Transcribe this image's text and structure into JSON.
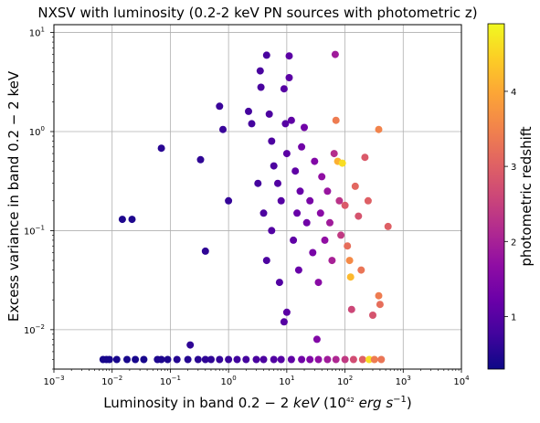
{
  "chart_data": {
    "type": "scatter",
    "title": "NXSV with luminosity (0.2-2 keV PN sources with photometric z)",
    "xlabel": "Luminosity in band 0.2 − 2 keV   (10^42 erg s^−1)",
    "xlabel_parts": {
      "main": "Luminosity in band ",
      "band_a": "0.2",
      "minus": " − 2",
      "unit": "keV",
      "paren_open": "(10",
      "paren_exp": "42",
      "erg": " erg s",
      "s_exp": "−1",
      "paren_close": ")"
    },
    "ylabel": "Excess variance in band 0.2 − 2 keV",
    "colorbar_label": "photometric redshift",
    "x_scale": "log",
    "y_scale": "log",
    "xlim": [
      0.001,
      10000
    ],
    "ylim": [
      0.004,
      12
    ],
    "x_ticks": [
      {
        "base": "10",
        "exp": "−3",
        "value": 0.001
      },
      {
        "base": "10",
        "exp": "−2",
        "value": 0.01
      },
      {
        "base": "10",
        "exp": "−1",
        "value": 0.1
      },
      {
        "base": "10",
        "exp": "0",
        "value": 1
      },
      {
        "base": "10",
        "exp": "1",
        "value": 10
      },
      {
        "base": "10",
        "exp": "2",
        "value": 100
      },
      {
        "base": "10",
        "exp": "3",
        "value": 1000
      },
      {
        "base": "10",
        "exp": "4",
        "value": 10000
      }
    ],
    "y_ticks": [
      {
        "base": "10",
        "exp": "−2",
        "value": 0.01
      },
      {
        "base": "10",
        "exp": "−1",
        "value": 0.1
      },
      {
        "base": "10",
        "exp": "0",
        "value": 1
      },
      {
        "base": "10",
        "exp": "1",
        "value": 10
      }
    ],
    "colorbar": {
      "colormap": "plasma",
      "range": [
        0.3,
        4.9
      ],
      "ticks": [
        "1",
        "2",
        "3",
        "4"
      ],
      "tick_values": [
        1,
        2,
        3,
        4
      ]
    },
    "grid": true,
    "floor_value": 0.005,
    "points": [
      {
        "x": 0.007,
        "y": 0.005,
        "z": 0.4
      },
      {
        "x": 0.008,
        "y": 0.005,
        "z": 0.4
      },
      {
        "x": 0.009,
        "y": 0.005,
        "z": 0.4
      },
      {
        "x": 0.012,
        "y": 0.005,
        "z": 0.4
      },
      {
        "x": 0.018,
        "y": 0.005,
        "z": 0.4
      },
      {
        "x": 0.025,
        "y": 0.005,
        "z": 0.4
      },
      {
        "x": 0.035,
        "y": 0.005,
        "z": 0.4
      },
      {
        "x": 0.06,
        "y": 0.005,
        "z": 0.45
      },
      {
        "x": 0.07,
        "y": 0.005,
        "z": 0.45
      },
      {
        "x": 0.09,
        "y": 0.005,
        "z": 0.45
      },
      {
        "x": 0.13,
        "y": 0.005,
        "z": 0.5
      },
      {
        "x": 0.2,
        "y": 0.005,
        "z": 0.5
      },
      {
        "x": 0.3,
        "y": 0.005,
        "z": 0.55
      },
      {
        "x": 0.4,
        "y": 0.005,
        "z": 0.6
      },
      {
        "x": 0.5,
        "y": 0.005,
        "z": 0.6
      },
      {
        "x": 0.7,
        "y": 0.005,
        "z": 0.65
      },
      {
        "x": 1.0,
        "y": 0.005,
        "z": 0.7
      },
      {
        "x": 1.4,
        "y": 0.005,
        "z": 0.75
      },
      {
        "x": 2.0,
        "y": 0.005,
        "z": 0.8
      },
      {
        "x": 3.0,
        "y": 0.005,
        "z": 0.85
      },
      {
        "x": 4.0,
        "y": 0.005,
        "z": 0.9
      },
      {
        "x": 6.0,
        "y": 0.005,
        "z": 0.95
      },
      {
        "x": 8.0,
        "y": 0.005,
        "z": 1.0
      },
      {
        "x": 12,
        "y": 0.005,
        "z": 1.1
      },
      {
        "x": 18,
        "y": 0.005,
        "z": 1.3
      },
      {
        "x": 25,
        "y": 0.005,
        "z": 1.5
      },
      {
        "x": 35,
        "y": 0.005,
        "z": 1.7
      },
      {
        "x": 50,
        "y": 0.005,
        "z": 1.9
      },
      {
        "x": 70,
        "y": 0.005,
        "z": 2.1
      },
      {
        "x": 100,
        "y": 0.005,
        "z": 2.4
      },
      {
        "x": 140,
        "y": 0.005,
        "z": 2.7
      },
      {
        "x": 200,
        "y": 0.005,
        "z": 3.0
      },
      {
        "x": 260,
        "y": 0.005,
        "z": 4.6
      },
      {
        "x": 320,
        "y": 0.005,
        "z": 3.4
      },
      {
        "x": 420,
        "y": 0.005,
        "z": 3.3
      },
      {
        "x": 0.015,
        "y": 0.13,
        "z": 0.45
      },
      {
        "x": 0.022,
        "y": 0.13,
        "z": 0.45
      },
      {
        "x": 0.07,
        "y": 0.68,
        "z": 0.55
      },
      {
        "x": 0.22,
        "y": 0.007,
        "z": 0.6
      },
      {
        "x": 0.33,
        "y": 0.52,
        "z": 0.6
      },
      {
        "x": 0.4,
        "y": 0.062,
        "z": 0.6
      },
      {
        "x": 0.7,
        "y": 1.8,
        "z": 0.7
      },
      {
        "x": 0.8,
        "y": 1.05,
        "z": 0.7
      },
      {
        "x": 1.0,
        "y": 0.2,
        "z": 0.65
      },
      {
        "x": 2.2,
        "y": 1.6,
        "z": 0.8
      },
      {
        "x": 2.5,
        "y": 1.2,
        "z": 0.8
      },
      {
        "x": 3.2,
        "y": 0.3,
        "z": 0.8
      },
      {
        "x": 3.5,
        "y": 4.1,
        "z": 0.85
      },
      {
        "x": 3.6,
        "y": 2.8,
        "z": 0.85
      },
      {
        "x": 4.5,
        "y": 5.9,
        "z": 0.85
      },
      {
        "x": 5.0,
        "y": 1.5,
        "z": 0.9
      },
      {
        "x": 5.5,
        "y": 0.8,
        "z": 0.9
      },
      {
        "x": 6.0,
        "y": 0.45,
        "z": 0.9
      },
      {
        "x": 4.0,
        "y": 0.15,
        "z": 0.9
      },
      {
        "x": 4.5,
        "y": 0.05,
        "z": 0.9
      },
      {
        "x": 5.5,
        "y": 0.1,
        "z": 0.95
      },
      {
        "x": 7.0,
        "y": 0.3,
        "z": 0.95
      },
      {
        "x": 7.5,
        "y": 0.03,
        "z": 0.95
      },
      {
        "x": 8.0,
        "y": 0.2,
        "z": 1.0
      },
      {
        "x": 9.0,
        "y": 2.7,
        "z": 1.0
      },
      {
        "x": 9.5,
        "y": 1.2,
        "z": 1.0
      },
      {
        "x": 10,
        "y": 0.6,
        "z": 1.05
      },
      {
        "x": 11,
        "y": 5.8,
        "z": 1.05
      },
      {
        "x": 11,
        "y": 3.5,
        "z": 1.05
      },
      {
        "x": 9.0,
        "y": 0.012,
        "z": 1.0
      },
      {
        "x": 10,
        "y": 0.015,
        "z": 1.05
      },
      {
        "x": 12,
        "y": 1.3,
        "z": 1.1
      },
      {
        "x": 13,
        "y": 0.08,
        "z": 1.1
      },
      {
        "x": 14,
        "y": 0.4,
        "z": 1.1
      },
      {
        "x": 15,
        "y": 0.15,
        "z": 1.2
      },
      {
        "x": 16,
        "y": 0.04,
        "z": 1.2
      },
      {
        "x": 17,
        "y": 0.25,
        "z": 1.2
      },
      {
        "x": 18,
        "y": 0.7,
        "z": 1.3
      },
      {
        "x": 20,
        "y": 1.1,
        "z": 1.3
      },
      {
        "x": 22,
        "y": 0.12,
        "z": 1.3
      },
      {
        "x": 25,
        "y": 0.2,
        "z": 1.4
      },
      {
        "x": 28,
        "y": 0.06,
        "z": 1.4
      },
      {
        "x": 30,
        "y": 0.5,
        "z": 1.5
      },
      {
        "x": 33,
        "y": 0.008,
        "z": 1.5
      },
      {
        "x": 35,
        "y": 0.03,
        "z": 1.6
      },
      {
        "x": 38,
        "y": 0.15,
        "z": 1.6
      },
      {
        "x": 40,
        "y": 0.35,
        "z": 1.7
      },
      {
        "x": 45,
        "y": 0.08,
        "z": 1.7
      },
      {
        "x": 50,
        "y": 0.25,
        "z": 1.8
      },
      {
        "x": 55,
        "y": 0.12,
        "z": 1.9
      },
      {
        "x": 60,
        "y": 0.05,
        "z": 2.0
      },
      {
        "x": 65,
        "y": 0.6,
        "z": 2.2
      },
      {
        "x": 68,
        "y": 6.0,
        "z": 1.9
      },
      {
        "x": 70,
        "y": 1.3,
        "z": 3.4
      },
      {
        "x": 75,
        "y": 0.5,
        "z": 4.1
      },
      {
        "x": 80,
        "y": 0.2,
        "z": 2.3
      },
      {
        "x": 85,
        "y": 0.09,
        "z": 2.4
      },
      {
        "x": 90,
        "y": 0.48,
        "z": 4.6
      },
      {
        "x": 100,
        "y": 0.18,
        "z": 2.9
      },
      {
        "x": 110,
        "y": 0.07,
        "z": 3.2
      },
      {
        "x": 120,
        "y": 0.05,
        "z": 3.6
      },
      {
        "x": 125,
        "y": 0.034,
        "z": 4.2
      },
      {
        "x": 130,
        "y": 0.016,
        "z": 2.6
      },
      {
        "x": 150,
        "y": 0.28,
        "z": 3.1
      },
      {
        "x": 170,
        "y": 0.14,
        "z": 2.8
      },
      {
        "x": 190,
        "y": 0.04,
        "z": 3.3
      },
      {
        "x": 220,
        "y": 0.55,
        "z": 2.9
      },
      {
        "x": 250,
        "y": 0.2,
        "z": 3.0
      },
      {
        "x": 300,
        "y": 0.014,
        "z": 2.8
      },
      {
        "x": 380,
        "y": 1.05,
        "z": 3.5
      },
      {
        "x": 400,
        "y": 0.018,
        "z": 3.2
      },
      {
        "x": 550,
        "y": 0.11,
        "z": 3.0
      },
      {
        "x": 380,
        "y": 0.022,
        "z": 3.4
      }
    ]
  }
}
